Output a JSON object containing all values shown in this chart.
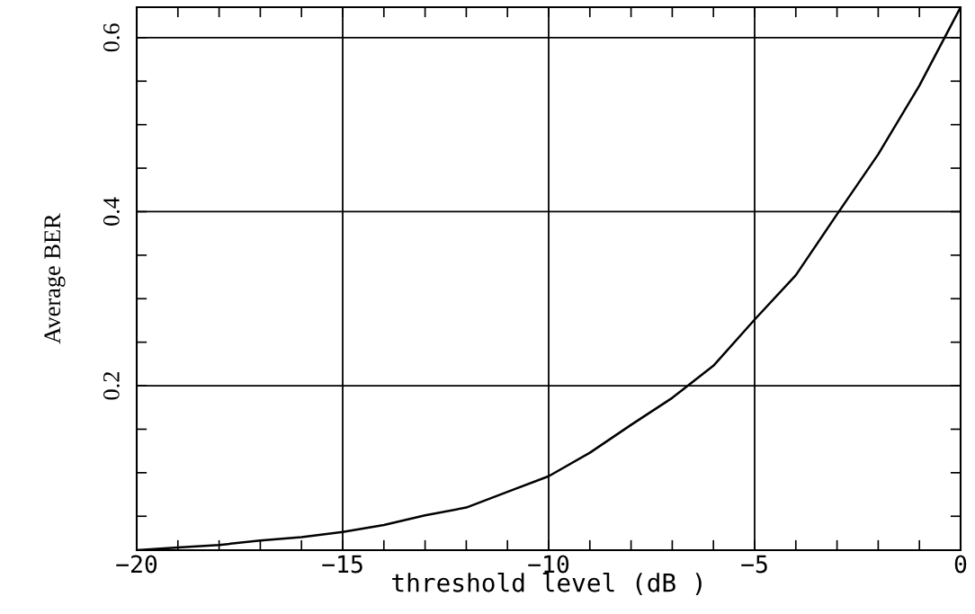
{
  "chart_data": {
    "type": "line",
    "xlabel": "threshold level (dB )",
    "ylabel": "Average BER",
    "x": [
      -20,
      -19,
      -18,
      -17,
      -16,
      -15,
      -14,
      -13,
      -12,
      -11,
      -10,
      -9,
      -8,
      -7,
      -6,
      -5,
      -4,
      -3,
      -2,
      -1,
      0
    ],
    "series": [
      {
        "color": "#000000",
        "values": [
          0.011,
          0.014,
          0.017,
          0.022,
          0.026,
          0.032,
          0.04,
          0.051,
          0.06,
          0.078,
          0.096,
          0.123,
          0.155,
          0.186,
          0.223,
          0.276,
          0.327,
          0.397,
          0.466,
          0.545,
          0.635
        ]
      }
    ],
    "xlim": [
      -20,
      0
    ],
    "ylim": [
      0.011,
      0.635
    ],
    "xticks": [
      -20,
      {
        "value": -19,
        "label": null
      },
      {
        "value": -18,
        "label": null
      },
      {
        "value": -17,
        "label": null
      },
      {
        "value": -16,
        "label": null
      },
      -15,
      {
        "value": -14,
        "label": null
      },
      {
        "value": -13,
        "label": null
      },
      {
        "value": -12,
        "label": null
      },
      {
        "value": -11,
        "label": null
      },
      -10,
      {
        "value": -9,
        "label": null
      },
      {
        "value": -8,
        "label": null
      },
      {
        "value": -7,
        "label": null
      },
      {
        "value": -6,
        "label": null
      },
      -5,
      {
        "value": -4,
        "label": null
      },
      {
        "value": -3,
        "label": null
      },
      {
        "value": -2,
        "label": null
      },
      {
        "value": -1,
        "label": null
      },
      0
    ],
    "yticks": [
      {
        "value": 0.05,
        "label": null
      },
      {
        "value": 0.1,
        "label": null
      },
      {
        "value": 0.15,
        "label": null
      },
      0.2,
      {
        "value": 0.25,
        "label": null
      },
      {
        "value": 0.3,
        "label": null
      },
      {
        "value": 0.35,
        "label": null
      },
      0.4,
      {
        "value": 0.45,
        "label": null
      },
      {
        "value": 0.5,
        "label": null
      },
      {
        "value": 0.55,
        "label": null
      },
      0.6
    ],
    "grid": true,
    "marker": "none",
    "line_style": "solid",
    "legend": false
  }
}
